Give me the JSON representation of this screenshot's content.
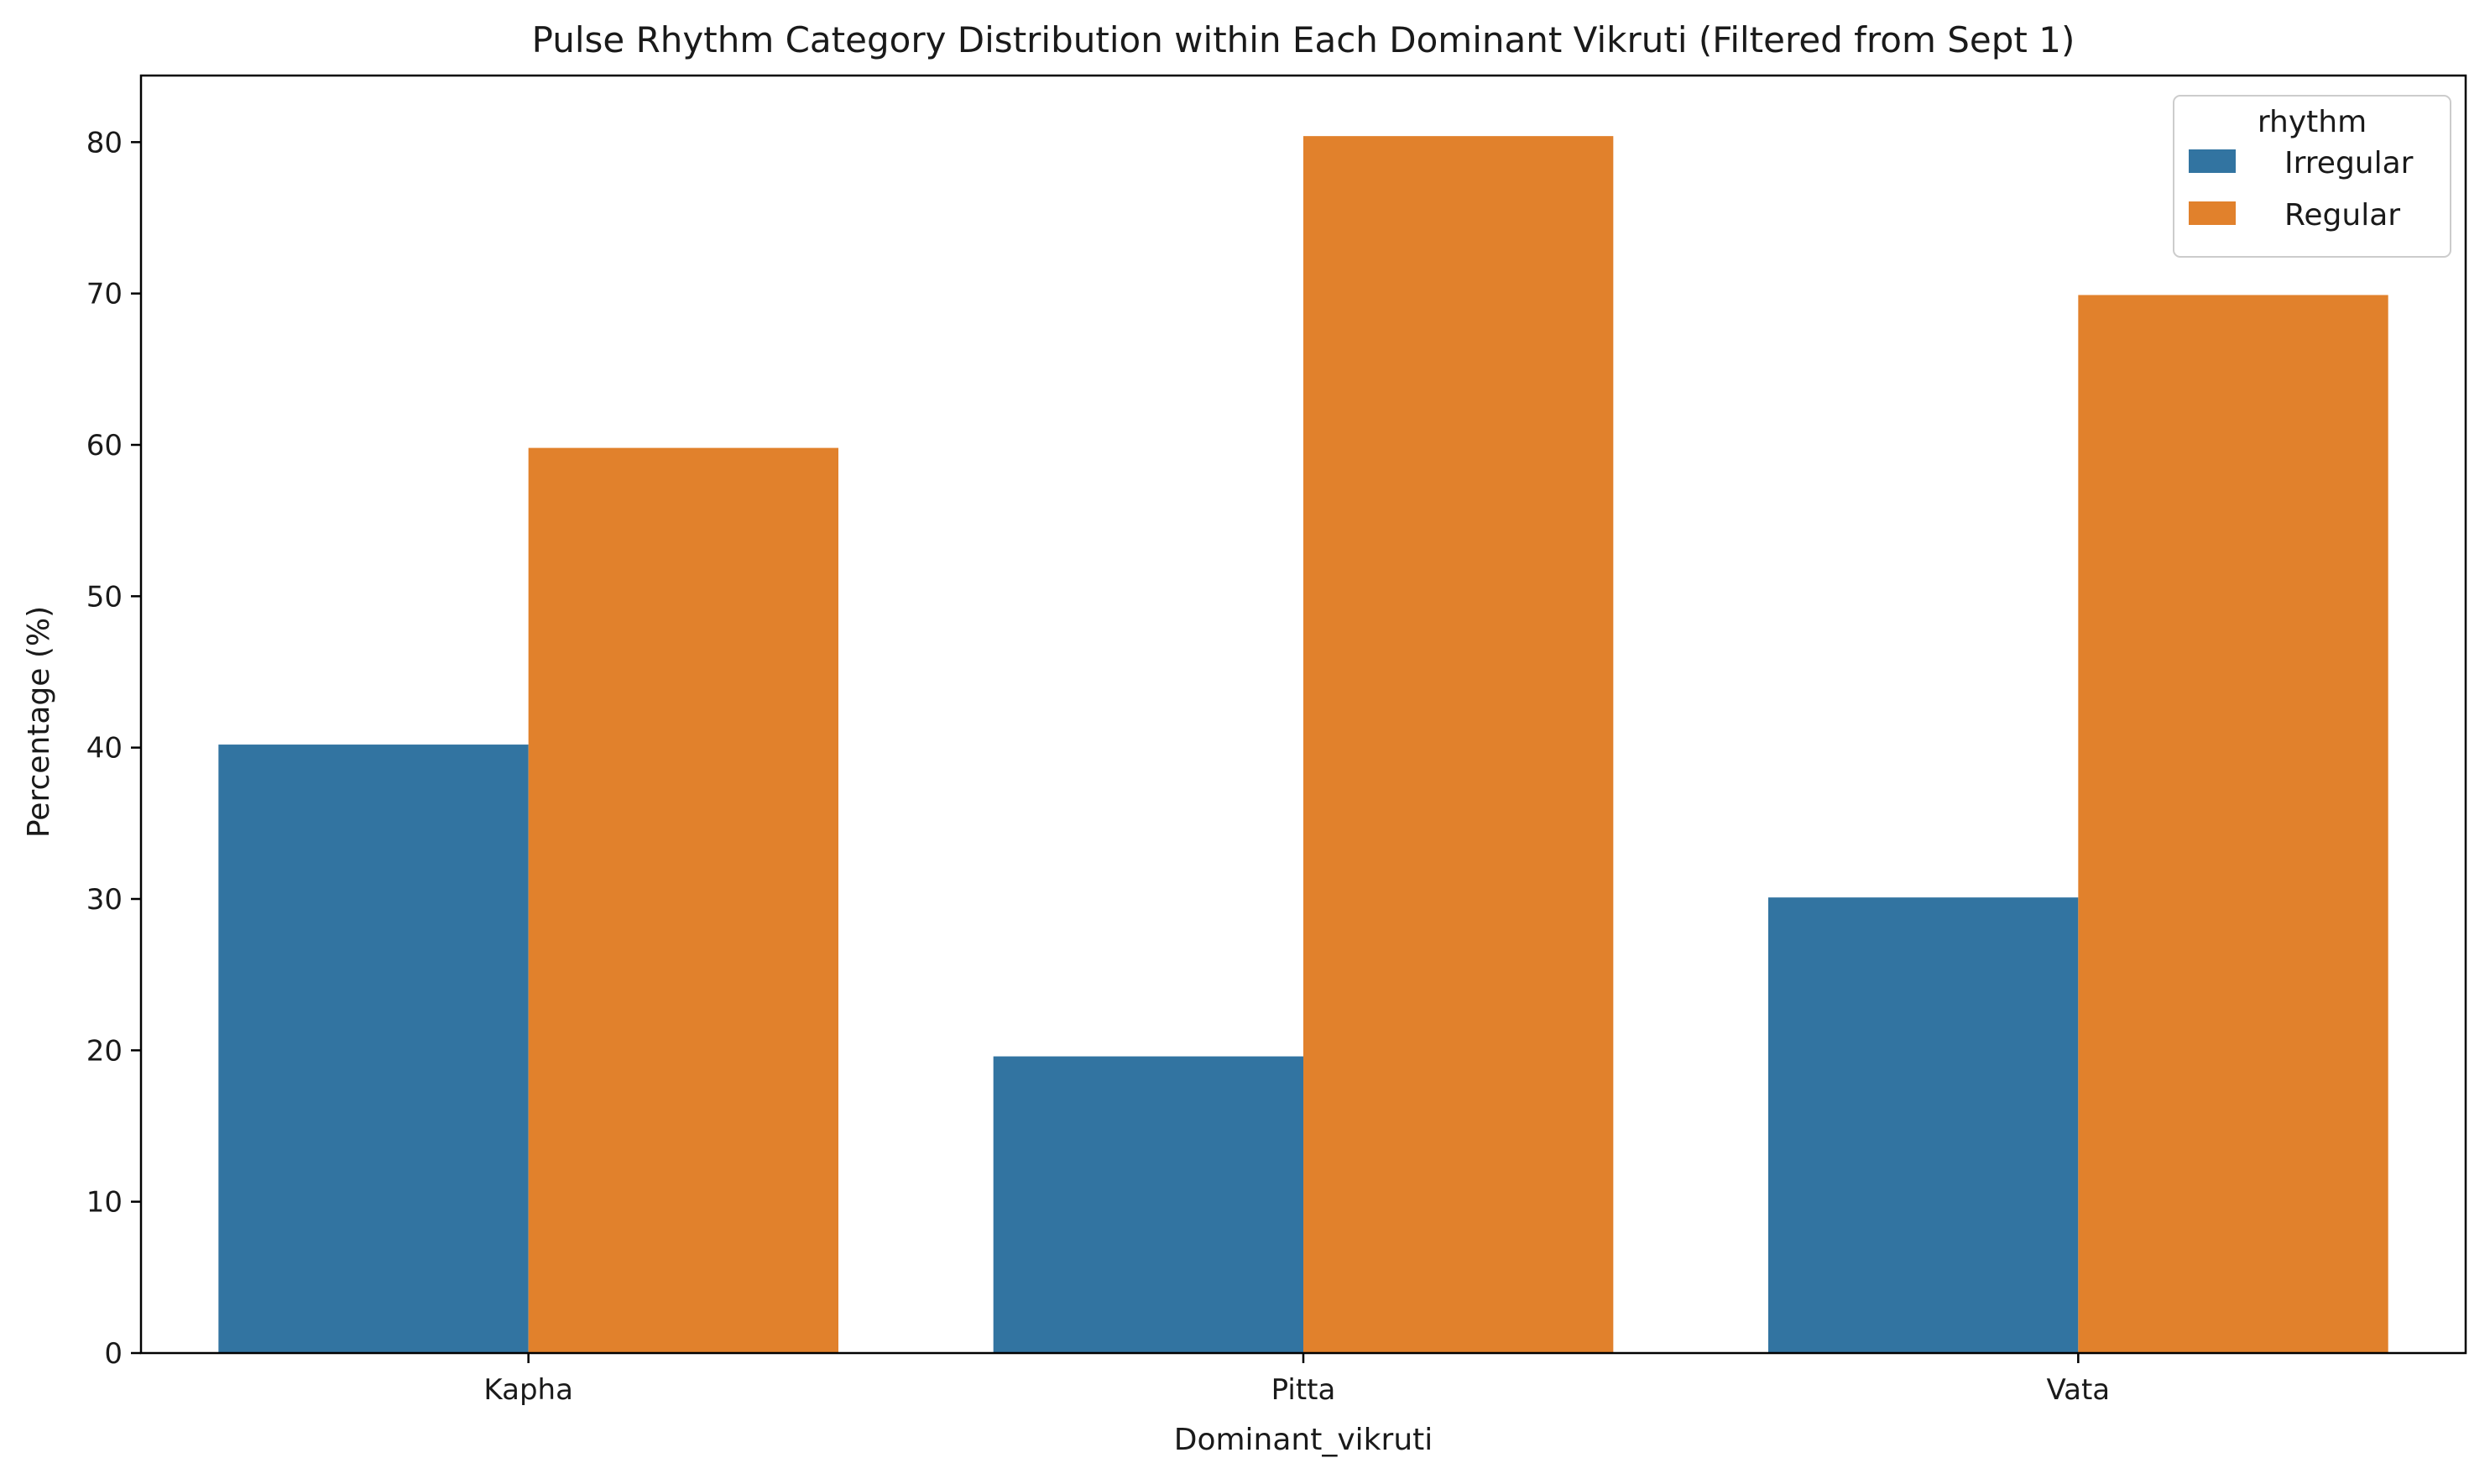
{
  "chart_data": {
    "type": "bar",
    "title": "Pulse Rhythm Category Distribution within Each Dominant Vikruti (Filtered from Sept 1)",
    "xlabel": "Dominant_vikruti",
    "ylabel": "Percentage (%)",
    "categories": [
      "Kapha",
      "Pitta",
      "Vata"
    ],
    "series": [
      {
        "name": "Irregular",
        "color": "#3274a1",
        "values": [
          40.2,
          19.6,
          30.1
        ]
      },
      {
        "name": "Regular",
        "color": "#e1812c",
        "values": [
          59.8,
          80.4,
          69.9
        ]
      }
    ],
    "ylim": [
      0,
      84.4
    ],
    "yticks": [
      0,
      10,
      20,
      30,
      40,
      50,
      60,
      70,
      80
    ],
    "grid": false,
    "legend": {
      "title": "rhythm",
      "position": "top-right"
    }
  }
}
